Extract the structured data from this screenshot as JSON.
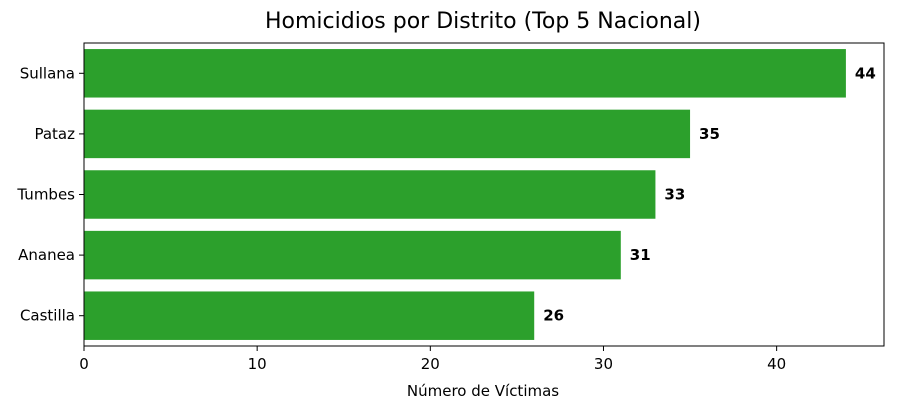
{
  "chart_data": {
    "type": "bar",
    "orientation": "horizontal",
    "title": "Homicidios por Distrito (Top 5 Nacional)",
    "xlabel": "Número de Víctimas",
    "ylabel": "",
    "categories": [
      "Sullana",
      "Pataz",
      "Tumbes",
      "Ananea",
      "Castilla"
    ],
    "values": [
      44,
      35,
      33,
      31,
      26
    ],
    "data_labels": [
      "44",
      "35",
      "33",
      "31",
      "26"
    ],
    "xlim": [
      0,
      46.2
    ],
    "xticks": [
      0,
      10,
      20,
      30,
      40
    ],
    "xtick_labels": [
      "0",
      "10",
      "20",
      "30",
      "40"
    ],
    "bar_color": "#2ca02c",
    "grid": false,
    "legend": "none"
  }
}
